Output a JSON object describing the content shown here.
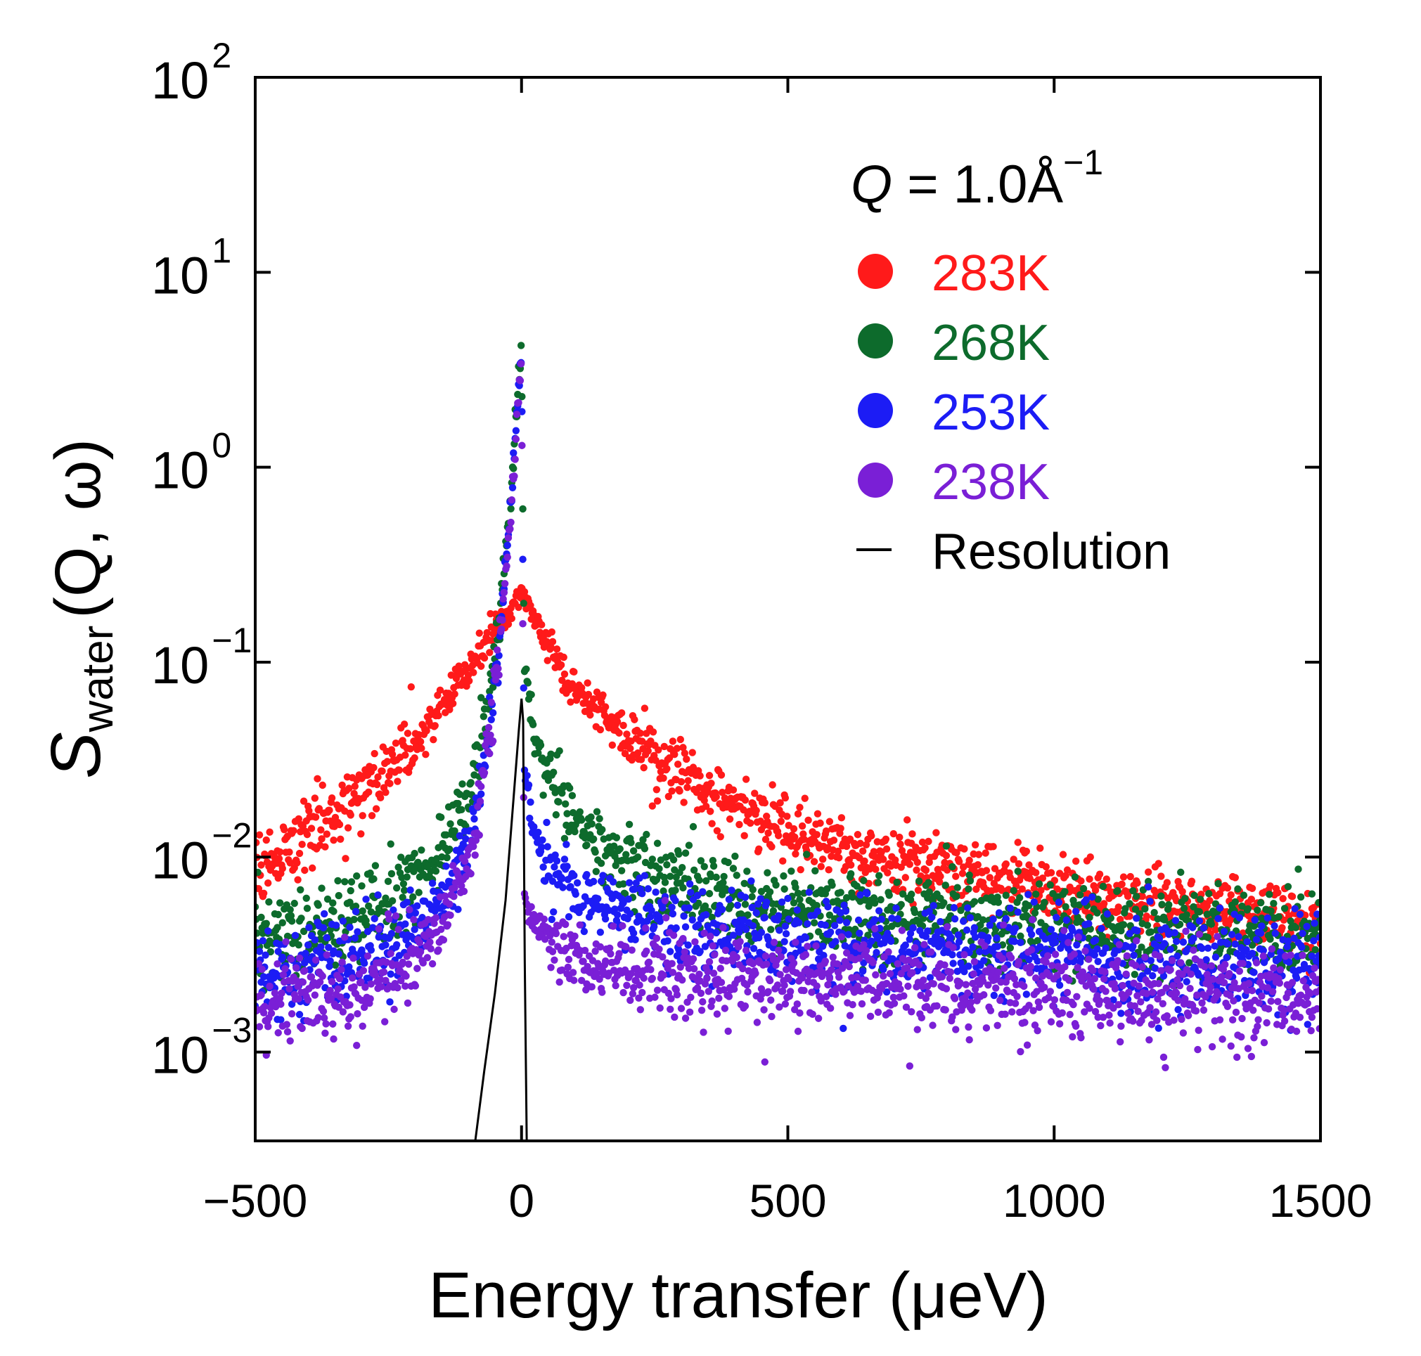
{
  "chart_data": {
    "type": "scatter",
    "title": "",
    "xlabel": "Energy transfer (μeV)",
    "ylabel": {
      "main": "S",
      "subscript": "water",
      "args": "(Q, ω)"
    },
    "xlim": [
      -500,
      1500
    ],
    "ylim": [
      0.00035,
      100
    ],
    "yscale": "log",
    "xticks": [
      {
        "value": -500,
        "label": "−500"
      },
      {
        "value": 0,
        "label": "0"
      },
      {
        "value": 500,
        "label": "500"
      },
      {
        "value": 1000,
        "label": "1000"
      },
      {
        "value": 1500,
        "label": "1500"
      }
    ],
    "yticks": [
      {
        "value": 0.001,
        "base": "10",
        "exp": "−3"
      },
      {
        "value": 0.01,
        "base": "10",
        "exp": "−2"
      },
      {
        "value": 0.1,
        "base": "10",
        "exp": "−1"
      },
      {
        "value": 1,
        "base": "10",
        "exp": "0"
      },
      {
        "value": 10,
        "base": "10",
        "exp": "1"
      },
      {
        "value": 100,
        "base": "10",
        "exp": "2"
      }
    ],
    "legend": {
      "position": "top-right",
      "header": {
        "symbol": "Q",
        "eq": " = 1.0Å",
        "exp": "−1"
      }
    },
    "series": [
      {
        "name": "283K",
        "color": "#ff1a1a",
        "kind": "points",
        "sample_energy": [
          -500,
          -400,
          -300,
          -200,
          -100,
          -50,
          -10,
          0,
          10,
          50,
          100,
          200,
          300,
          400,
          500,
          600,
          700,
          800,
          900,
          1000,
          1100,
          1200,
          1300,
          1400,
          1500
        ],
        "sample_value": [
          0.009,
          0.013,
          0.022,
          0.04,
          0.09,
          0.15,
          0.2,
          0.22,
          0.2,
          0.12,
          0.07,
          0.042,
          0.027,
          0.019,
          0.014,
          0.011,
          0.0095,
          0.0085,
          0.0076,
          0.0068,
          0.0062,
          0.0057,
          0.0053,
          0.0049,
          0.0045
        ]
      },
      {
        "name": "268K",
        "color": "#0d6b2c",
        "kind": "points",
        "sample_energy": [
          -500,
          -400,
          -300,
          -200,
          -150,
          -100,
          -80,
          -60,
          -40,
          -20,
          -5,
          0,
          5,
          20,
          50,
          100,
          200,
          300,
          400,
          500,
          700,
          1000,
          1200,
          1500
        ],
        "sample_value": [
          0.0038,
          0.0042,
          0.0048,
          0.0075,
          0.011,
          0.02,
          0.035,
          0.07,
          0.2,
          0.7,
          3,
          3.5,
          0.1,
          0.05,
          0.025,
          0.015,
          0.009,
          0.007,
          0.006,
          0.0055,
          0.005,
          0.0045,
          0.0042,
          0.004
        ]
      },
      {
        "name": "253K",
        "color": "#1c1cf5",
        "kind": "points",
        "sample_energy": [
          -500,
          -400,
          -300,
          -200,
          -150,
          -100,
          -80,
          -60,
          -40,
          -20,
          -5,
          0,
          5,
          20,
          50,
          100,
          200,
          300,
          400,
          500,
          700,
          1000,
          1200,
          1500
        ],
        "sample_value": [
          0.0026,
          0.0029,
          0.0032,
          0.0042,
          0.006,
          0.011,
          0.02,
          0.045,
          0.15,
          0.6,
          2.8,
          3.4,
          0.03,
          0.015,
          0.009,
          0.0065,
          0.005,
          0.0042,
          0.0038,
          0.0036,
          0.0034,
          0.0032,
          0.003,
          0.0028
        ]
      },
      {
        "name": "238K",
        "color": "#7a1fd6",
        "kind": "points",
        "sample_energy": [
          -500,
          -400,
          -300,
          -200,
          -150,
          -100,
          -80,
          -60,
          -40,
          -20,
          -5,
          0,
          5,
          20,
          50,
          100,
          200,
          300,
          400,
          500,
          700,
          1000,
          1200,
          1500
        ],
        "sample_value": [
          0.0018,
          0.002,
          0.0022,
          0.003,
          0.0045,
          0.009,
          0.018,
          0.04,
          0.14,
          0.55,
          2.6,
          3.5,
          0.006,
          0.0045,
          0.0038,
          0.0032,
          0.0027,
          0.0025,
          0.0024,
          0.0023,
          0.0022,
          0.0021,
          0.002,
          0.0019
        ]
      },
      {
        "name": "Resolution",
        "color": "#000000",
        "kind": "line",
        "sample_energy": [
          -90,
          -70,
          -50,
          -30,
          -15,
          -5,
          0,
          3,
          6,
          10,
          14
        ],
        "sample_value": [
          0.0003,
          0.0008,
          0.002,
          0.006,
          0.02,
          0.045,
          0.065,
          0.05,
          0.003,
          0.0003,
          0.0003
        ]
      }
    ]
  }
}
